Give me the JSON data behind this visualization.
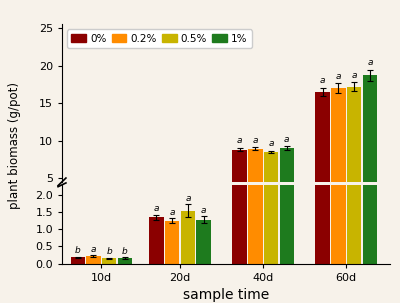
{
  "categories": [
    "10d",
    "20d",
    "40d",
    "60d"
  ],
  "series": {
    "0%": {
      "color": "#8B0000",
      "values": [
        0.18,
        1.35,
        8.8,
        16.5
      ],
      "errors": [
        0.02,
        0.07,
        0.25,
        0.55
      ]
    },
    "0.2%": {
      "color": "#FF8C00",
      "values": [
        0.22,
        1.25,
        8.9,
        17.0
      ],
      "errors": [
        0.02,
        0.07,
        0.2,
        0.65
      ]
    },
    "0.5%": {
      "color": "#C8B400",
      "values": [
        0.15,
        1.55,
        8.5,
        17.2
      ],
      "errors": [
        0.02,
        0.18,
        0.15,
        0.55
      ]
    },
    "1%": {
      "color": "#1E7B1E",
      "values": [
        0.16,
        1.28,
        9.0,
        18.7
      ],
      "errors": [
        0.02,
        0.1,
        0.25,
        0.75
      ]
    }
  },
  "labels_lower": [
    [
      "b",
      "a",
      "b",
      "b"
    ],
    [
      "a",
      "a",
      "a",
      "a"
    ],
    null,
    null
  ],
  "labels_upper": [
    null,
    null,
    [
      "a",
      "a",
      "a",
      "a"
    ],
    [
      "a",
      "a",
      "a",
      "a"
    ]
  ],
  "bar_width": 0.18,
  "lower_ylim": [
    0.0,
    2.3
  ],
  "upper_ylim": [
    4.5,
    25.5
  ],
  "lower_yticks": [
    0,
    0.5,
    1.0,
    1.5,
    2.0
  ],
  "upper_yticks": [
    5,
    10,
    15,
    20,
    25
  ],
  "xlabel": "sample time",
  "ylabel": "plant biomass (g/pot)",
  "legend_labels": [
    "0%",
    "0.2%",
    "0.5%",
    "1%"
  ],
  "legend_colors": [
    "#8B0000",
    "#FF8C00",
    "#C8B400",
    "#1E7B1E"
  ],
  "background": "#f7f2ea",
  "x_positions": [
    0.45,
    1.35,
    2.3,
    3.25
  ],
  "xlim": [
    0.0,
    3.75
  ]
}
